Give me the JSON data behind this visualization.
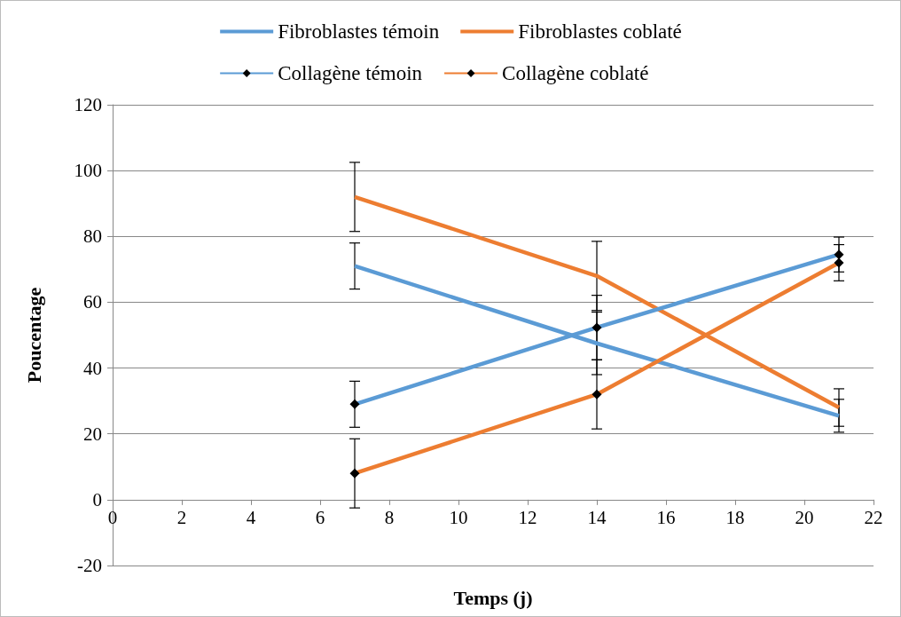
{
  "chart_data": {
    "type": "line",
    "xlabel": "Temps (j)",
    "ylabel": "Poucentage",
    "x": [
      7,
      14,
      21
    ],
    "series": [
      {
        "name": "Fibroblastes témoin",
        "color": "#5b9bd5",
        "marker": "none",
        "values": [
          71,
          47.5,
          25.5
        ],
        "errors": [
          7,
          9.5,
          5
        ]
      },
      {
        "name": "Fibroblastes coblaté",
        "color": "#ed7d31",
        "marker": "none",
        "values": [
          92,
          68,
          28
        ],
        "errors": [
          10.5,
          10.5,
          5.7
        ]
      },
      {
        "name": "Collagène témoin",
        "color": "#5b9bd5",
        "marker": "diamond",
        "values": [
          29,
          52.3,
          74.5
        ],
        "errors": [
          7,
          9.8,
          5.3
        ]
      },
      {
        "name": "Collagène coblaté",
        "color": "#ed7d31",
        "marker": "diamond",
        "values": [
          8,
          32,
          72
        ],
        "errors": [
          10.5,
          10.5,
          5.5
        ]
      }
    ],
    "xlim": [
      0,
      22
    ],
    "xticks": [
      0,
      2,
      4,
      6,
      8,
      10,
      12,
      14,
      16,
      18,
      20,
      22
    ],
    "ylim": [
      -20,
      120
    ],
    "yticks": [
      -20,
      0,
      20,
      40,
      60,
      80,
      100,
      120
    ],
    "grid": "y",
    "legend": "top",
    "line_style": "solid"
  }
}
